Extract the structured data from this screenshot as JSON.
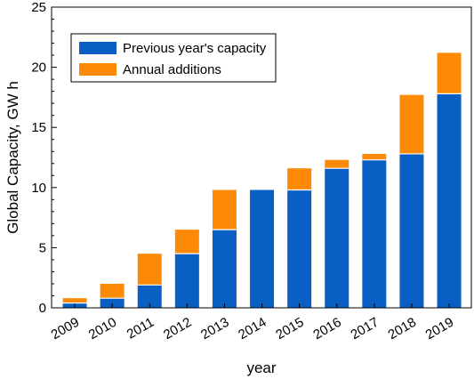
{
  "chart_data": {
    "type": "bar",
    "stacked": true,
    "categories": [
      "2009",
      "2010",
      "2011",
      "2012",
      "2013",
      "2014",
      "2015",
      "2016",
      "2017",
      "2018",
      "2019"
    ],
    "series": [
      {
        "name": "Previous year's capacity",
        "color": "#0a5fc4",
        "values": [
          0.4,
          0.8,
          1.9,
          4.5,
          6.5,
          9.8,
          9.8,
          11.6,
          12.3,
          12.8,
          17.8
        ]
      },
      {
        "name": "Annual additions",
        "color": "#fd8a07",
        "values": [
          0.4,
          1.2,
          2.6,
          2.0,
          3.3,
          0.0,
          1.8,
          0.7,
          0.5,
          4.9,
          3.4
        ]
      }
    ],
    "title": "",
    "xlabel": "year",
    "ylabel": "Global Capacity, GW h",
    "ylim": [
      0,
      25
    ],
    "yticks": [
      0,
      5,
      10,
      15,
      20,
      25
    ],
    "ytick_labels": [
      "0",
      "5",
      "10",
      "15",
      "20",
      "25"
    ],
    "y_minor_step": 1,
    "grid": false,
    "legend_position": "top-left"
  }
}
